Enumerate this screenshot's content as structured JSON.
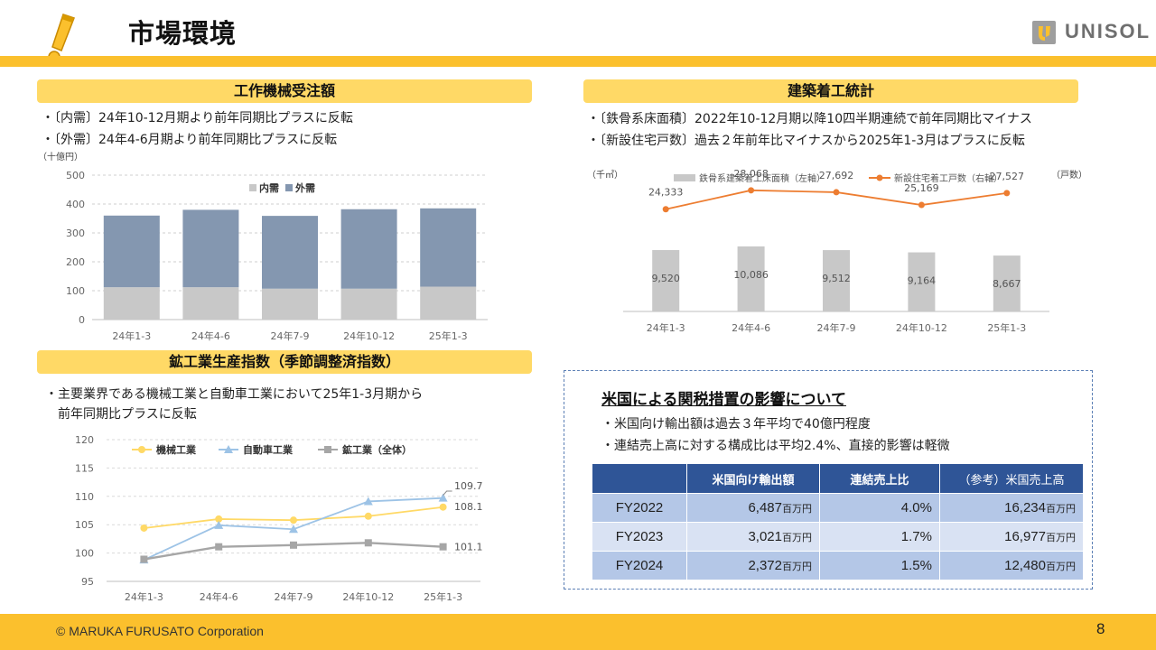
{
  "header": {
    "title": "市場環境",
    "logo_text": "UNISOL"
  },
  "footer": {
    "copyright": "© MARUKA FURUSATO Corporation",
    "page_number": "8"
  },
  "colors": {
    "accent": "#FBC02D",
    "section": "#FFD966",
    "navy": "#2F5597"
  },
  "machine_orders": {
    "header": "工作機械受注額",
    "bullets": [
      "・〔内需〕24年10-12月期より前年同期比プラスに反転",
      "・〔外需〕24年4-6月期より前年同期比プラスに反転"
    ]
  },
  "construction": {
    "header": "建築着工統計",
    "bullets": [
      "・〔鉄骨系床面積〕2022年10-12月期以降10四半期連続で前年同期比マイナス",
      "・〔新設住宅戸数〕過去２年前年比マイナスから2025年1-3月はプラスに反転"
    ]
  },
  "mining": {
    "header": "鉱工業生産指数（季節調整済指数）",
    "bullets": [
      "・主要業界である機械工業と自動車工業において25年1-3月期から",
      "　前年同期比プラスに反転"
    ]
  },
  "tariff": {
    "title": "米国による関税措置の影響について",
    "bullets": [
      "・米国向け輸出額は過去３年平均で40億円程度",
      "・連結売上高に対する構成比は平均2.4%、直接的影響は軽微"
    ],
    "columns": [
      "",
      "米国向け輸出額",
      "連結売上比",
      "（参考）米国売上高"
    ],
    "unit": "百万円",
    "rows": [
      {
        "year": "FY2022",
        "export": "6,487",
        "ratio": "4.0%",
        "us_sales": "16,234"
      },
      {
        "year": "FY2023",
        "export": "3,021",
        "ratio": "1.7%",
        "us_sales": "16,977"
      },
      {
        "year": "FY2024",
        "export": "2,372",
        "ratio": "1.5%",
        "us_sales": "12,480"
      }
    ]
  },
  "chart_data": [
    {
      "id": "machine",
      "type": "bar",
      "stacked": true,
      "title": "",
      "unit_label": "（十億円）",
      "categories": [
        "24年1-3",
        "24年4-6",
        "24年7-9",
        "24年10-12",
        "25年1-3"
      ],
      "series": [
        {
          "name": "内需",
          "values": [
            112,
            112,
            107,
            107,
            114
          ],
          "color": "#c8c8c8"
        },
        {
          "name": "外需",
          "values": [
            248,
            268,
            252,
            275,
            271
          ],
          "color": "#8497b0"
        }
      ],
      "ylim": [
        0,
        500
      ],
      "yticks": [
        0,
        100,
        200,
        300,
        400,
        500
      ],
      "legend": "top-center"
    },
    {
      "id": "construction",
      "type": "bar+line",
      "left_unit": "（千㎡）",
      "right_unit": "（戸数）",
      "categories": [
        "24年1-3",
        "24年4-6",
        "24年7-9",
        "24年10-12",
        "25年1-3"
      ],
      "series": [
        {
          "name": "鉄骨系建築着工床面積（左軸）",
          "kind": "bar",
          "values": [
            9520,
            10086,
            9512,
            9164,
            8667
          ],
          "labels": [
            "9,520",
            "10,086",
            "9,512",
            "9,164",
            "8,667"
          ],
          "color": "#c8c8c8"
        },
        {
          "name": "新設住宅着工戸数（右軸）",
          "kind": "line",
          "values": [
            24333,
            28068,
            27692,
            25169,
            27527
          ],
          "labels": [
            "24,333",
            "28,068",
            "27,692",
            "25,169",
            "27,527"
          ],
          "color": "#ED7D31"
        }
      ],
      "legend": "top"
    },
    {
      "id": "mining",
      "type": "line",
      "categories": [
        "24年1-3",
        "24年4-6",
        "24年7-9",
        "24年10-12",
        "25年1-3"
      ],
      "series": [
        {
          "name": "機械工業",
          "values": [
            104.4,
            106.0,
            105.8,
            106.5,
            108.1
          ],
          "color": "#FFD966",
          "marker": "circle"
        },
        {
          "name": "自動車工業",
          "values": [
            98.8,
            104.9,
            104.2,
            109.1,
            109.7
          ],
          "color": "#9DC3E6",
          "marker": "triangle"
        },
        {
          "name": "鉱工業（全体）",
          "values": [
            98.9,
            101.1,
            101.4,
            101.8,
            101.1
          ],
          "color": "#a6a6a6",
          "marker": "square"
        }
      ],
      "end_labels": [
        "108.1",
        "109.7",
        "101.1"
      ],
      "ylim": [
        95,
        120
      ],
      "yticks": [
        95,
        100,
        105,
        110,
        115,
        120
      ],
      "legend": "top"
    }
  ]
}
